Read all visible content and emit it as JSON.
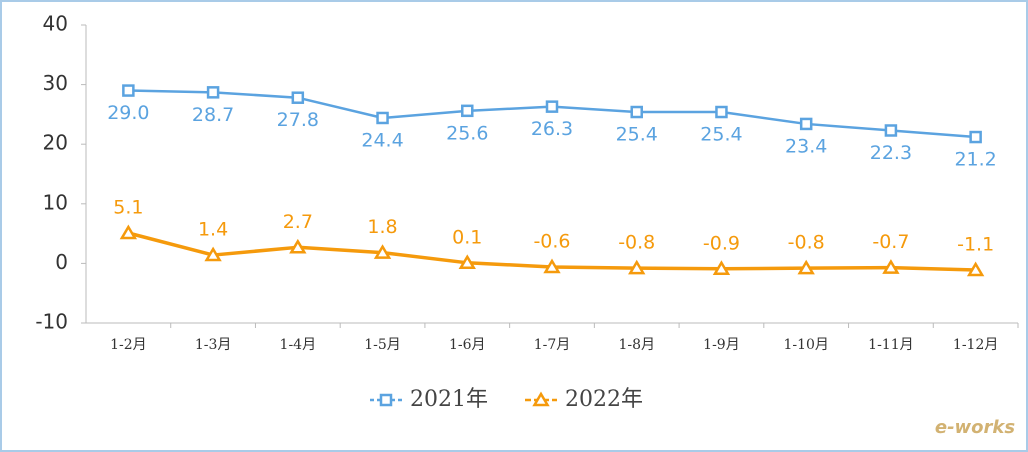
{
  "chart_data": {
    "type": "line",
    "categories": [
      "1-2月",
      "1-3月",
      "1-4月",
      "1-5月",
      "1-6月",
      "1-7月",
      "1-8月",
      "1-9月",
      "1-10月",
      "1-11月",
      "1-12月"
    ],
    "series": [
      {
        "name": "2021年",
        "color": "#5ba3e0",
        "marker": "square",
        "values": [
          29.0,
          28.7,
          27.8,
          24.4,
          25.6,
          26.3,
          25.4,
          25.4,
          23.4,
          22.3,
          21.2
        ],
        "value_labels": [
          "29.0",
          "28.7",
          "27.8",
          "24.4",
          "25.6",
          "26.3",
          "25.4",
          "25.4",
          "23.4",
          "22.3",
          "21.2"
        ]
      },
      {
        "name": "2022年",
        "color": "#f59a0c",
        "marker": "triangle",
        "values": [
          5.1,
          1.4,
          2.7,
          1.8,
          0.1,
          -0.6,
          -0.8,
          -0.9,
          -0.8,
          -0.7,
          -1.1
        ],
        "value_labels": [
          "5.1",
          "1.4",
          "2.7",
          "1.8",
          "0.1",
          "-0.6",
          "-0.8",
          "-0.9",
          "-0.8",
          "-0.7",
          "-1.1"
        ]
      }
    ],
    "ylim": [
      -10,
      40
    ],
    "yticks": [
      -10,
      0,
      10,
      20,
      30,
      40
    ],
    "grid": false,
    "legend": "bottom",
    "watermark": "e-works"
  }
}
